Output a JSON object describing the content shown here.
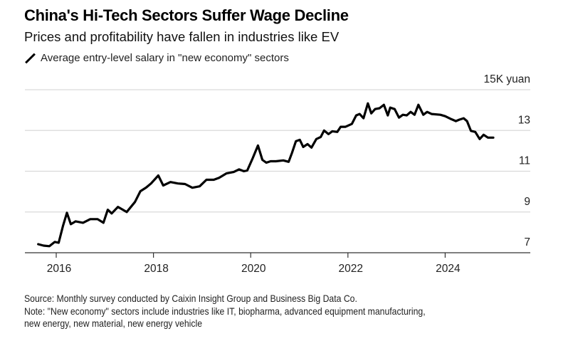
{
  "header": {
    "title": "China's Hi-Tech Sectors Suffer Wage Decline",
    "subtitle": "Prices and profitability have fallen in industries like EV",
    "legend_icon": "line-swatch-icon"
  },
  "footer": {
    "source": "Source: Monthly survey conducted by Caixin Insight Group and Business Big Data Co.",
    "note_line1": "Note: \"New economy\" sectors include industries like IT, biopharma, advanced equipment manufacturing,",
    "note_line2": "new energy, new material, new energy vehicle"
  },
  "chart_data": {
    "type": "line",
    "title": "China's Hi-Tech Sectors Suffer Wage Decline",
    "subtitle": "Prices and profitability have fallen in industries like EV",
    "xlabel": "",
    "ylabel": "K yuan",
    "unit_label": "15K yuan",
    "xlim": [
      2015.4,
      2025.8
    ],
    "ylim": [
      7,
      15
    ],
    "x_ticks": [
      2016,
      2018,
      2020,
      2022,
      2024
    ],
    "x_tick_labels": [
      "2016",
      "2018",
      "2020",
      "2022",
      "2024"
    ],
    "y_ticks": [
      7,
      9,
      11,
      13,
      15
    ],
    "y_tick_labels": [
      "7",
      "9",
      "11",
      "13",
      "15K yuan"
    ],
    "y_axis_side": "right",
    "grid": true,
    "legend_position": "top-left",
    "line_color": "#000000",
    "grid_color": "#d9d9d9",
    "axis_color": "#333333",
    "series": [
      {
        "name": "Average entry-level salary in \"new economy\" sectors",
        "x": [
          2015.63,
          2015.74,
          2015.86,
          2015.97,
          2016.05,
          2016.14,
          2016.22,
          2016.3,
          2016.4,
          2016.55,
          2016.7,
          2016.85,
          2016.97,
          2017.06,
          2017.14,
          2017.27,
          2017.45,
          2017.62,
          2017.73,
          2017.85,
          2017.95,
          2018.1,
          2018.2,
          2018.35,
          2018.5,
          2018.65,
          2018.8,
          2018.95,
          2019.09,
          2019.24,
          2019.35,
          2019.5,
          2019.65,
          2019.76,
          2019.86,
          2019.93,
          2020.04,
          2020.15,
          2020.24,
          2020.32,
          2020.41,
          2020.52,
          2020.67,
          2020.78,
          2020.85,
          2020.93,
          2021.01,
          2021.08,
          2021.17,
          2021.25,
          2021.35,
          2021.44,
          2021.51,
          2021.6,
          2021.68,
          2021.78,
          2021.85,
          2021.95,
          2022.08,
          2022.17,
          2022.24,
          2022.32,
          2022.41,
          2022.48,
          2022.56,
          2022.65,
          2022.74,
          2022.82,
          2022.87,
          2022.96,
          2023.05,
          2023.13,
          2023.21,
          2023.29,
          2023.37,
          2023.45,
          2023.55,
          2023.63,
          2023.72,
          2023.9,
          2024.0,
          2024.12,
          2024.22,
          2024.29,
          2024.38,
          2024.45,
          2024.53,
          2024.62,
          2024.71,
          2024.79,
          2024.88,
          2024.99
        ],
        "y": [
          7.42,
          7.35,
          7.32,
          7.53,
          7.49,
          8.33,
          8.96,
          8.4,
          8.54,
          8.47,
          8.65,
          8.65,
          8.47,
          9.11,
          8.93,
          9.25,
          9.0,
          9.49,
          10.02,
          10.2,
          10.4,
          10.79,
          10.3,
          10.47,
          10.4,
          10.37,
          10.19,
          10.26,
          10.58,
          10.58,
          10.68,
          10.89,
          10.96,
          11.09,
          11.0,
          11.04,
          11.63,
          12.26,
          11.56,
          11.42,
          11.49,
          11.49,
          11.53,
          11.46,
          11.91,
          12.47,
          12.54,
          12.19,
          12.33,
          12.16,
          12.58,
          12.68,
          13.0,
          12.82,
          12.96,
          12.93,
          13.18,
          13.18,
          13.32,
          13.74,
          13.81,
          13.6,
          14.33,
          13.84,
          14.05,
          14.09,
          14.26,
          13.74,
          14.12,
          14.05,
          13.63,
          13.77,
          13.74,
          13.91,
          13.77,
          14.26,
          13.77,
          13.91,
          13.81,
          13.77,
          13.7,
          13.56,
          13.46,
          13.53,
          13.6,
          13.46,
          12.98,
          12.93,
          12.58,
          12.79,
          12.65,
          12.65
        ]
      }
    ]
  }
}
